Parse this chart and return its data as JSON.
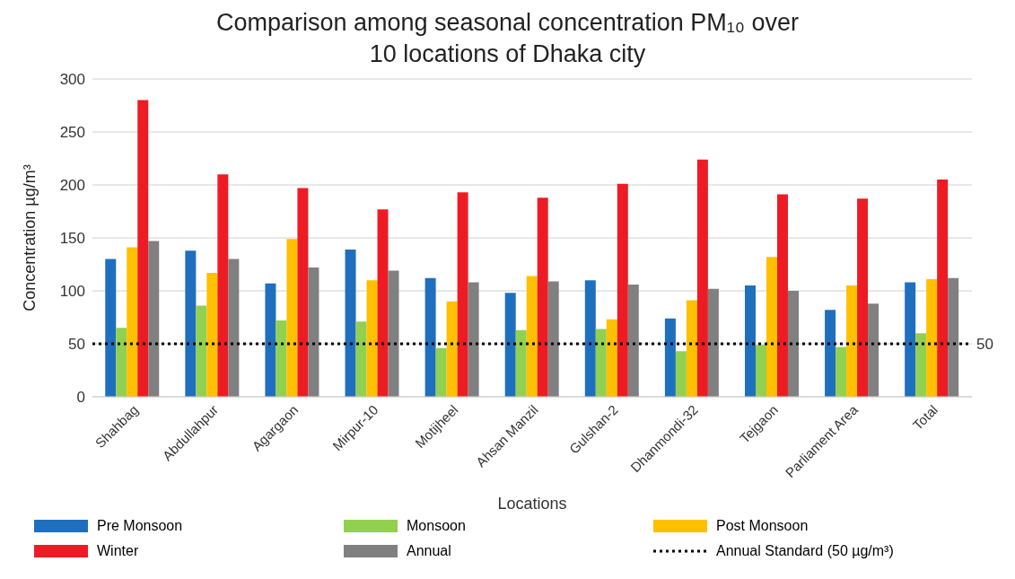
{
  "chart_data": {
    "type": "bar",
    "title": "Comparison among seasonal concentration  PM₁₀ over 10 locations of Dhaka city",
    "xlabel": "Locations",
    "ylabel": "Concentration µg/m³",
    "categories": [
      "Shahbag",
      "Abdullahpur",
      "Agargaon",
      "Mirpur-10",
      "Motijheel",
      "Ahsan Manzil",
      "Gulshan-2",
      "Dhanmondi-32",
      "Tejgaon",
      "Parliament Area",
      "Total"
    ],
    "series": [
      {
        "name": "Pre Monsoon",
        "color": "#1f6fbf",
        "values": [
          130,
          138,
          107,
          139,
          112,
          98,
          110,
          74,
          105,
          82,
          108
        ]
      },
      {
        "name": "Monsoon",
        "color": "#92d050",
        "values": [
          65,
          86,
          72,
          71,
          46,
          63,
          64,
          43,
          49,
          47,
          60
        ]
      },
      {
        "name": "Post Monsoon",
        "color": "#ffc000",
        "values": [
          141,
          117,
          149,
          110,
          90,
          114,
          73,
          91,
          132,
          105,
          111
        ]
      },
      {
        "name": "Winter",
        "color": "#ed1c24",
        "values": [
          280,
          210,
          197,
          177,
          193,
          188,
          201,
          224,
          191,
          187,
          205
        ]
      },
      {
        "name": "Annual",
        "color": "#808080",
        "values": [
          147,
          130,
          122,
          119,
          108,
          109,
          106,
          102,
          100,
          88,
          112
        ]
      }
    ],
    "ref_lines": [
      {
        "axis": "y",
        "value": 50,
        "label": "Annual Standard (50 µg/m³)",
        "color": "#000000",
        "line_style": "dotted"
      }
    ],
    "annotations": [
      "50"
    ],
    "ylim": [
      0,
      300
    ],
    "yticks": [
      0,
      50,
      100,
      150,
      200,
      250,
      300
    ],
    "grid": "y",
    "legend": "bottom"
  }
}
